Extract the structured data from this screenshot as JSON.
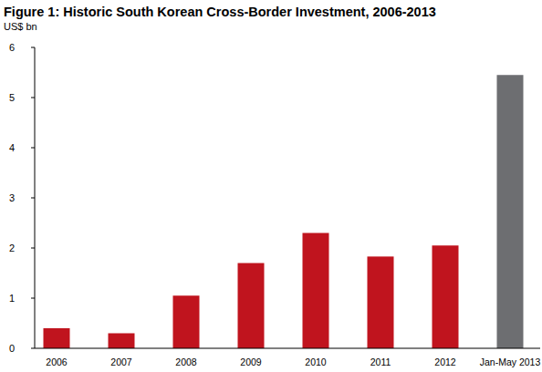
{
  "chart_data": {
    "type": "bar",
    "title": "Figure 1: Historic South Korean Cross-Border Investment, 2006-2013",
    "y_label": "US$ bn",
    "categories": [
      "2006",
      "2007",
      "2008",
      "2009",
      "2010",
      "2011",
      "2012",
      "Jan-May 2013"
    ],
    "values": [
      0.4,
      0.3,
      1.05,
      1.7,
      2.3,
      1.83,
      2.05,
      5.45
    ],
    "colors": [
      "#c0141e",
      "#c0141e",
      "#c0141e",
      "#c0141e",
      "#c0141e",
      "#c0141e",
      "#c0141e",
      "#6d6e71"
    ],
    "ylim": [
      0,
      6
    ],
    "yticks": [
      0,
      1,
      2,
      3,
      4,
      5,
      6
    ],
    "grid": false
  }
}
